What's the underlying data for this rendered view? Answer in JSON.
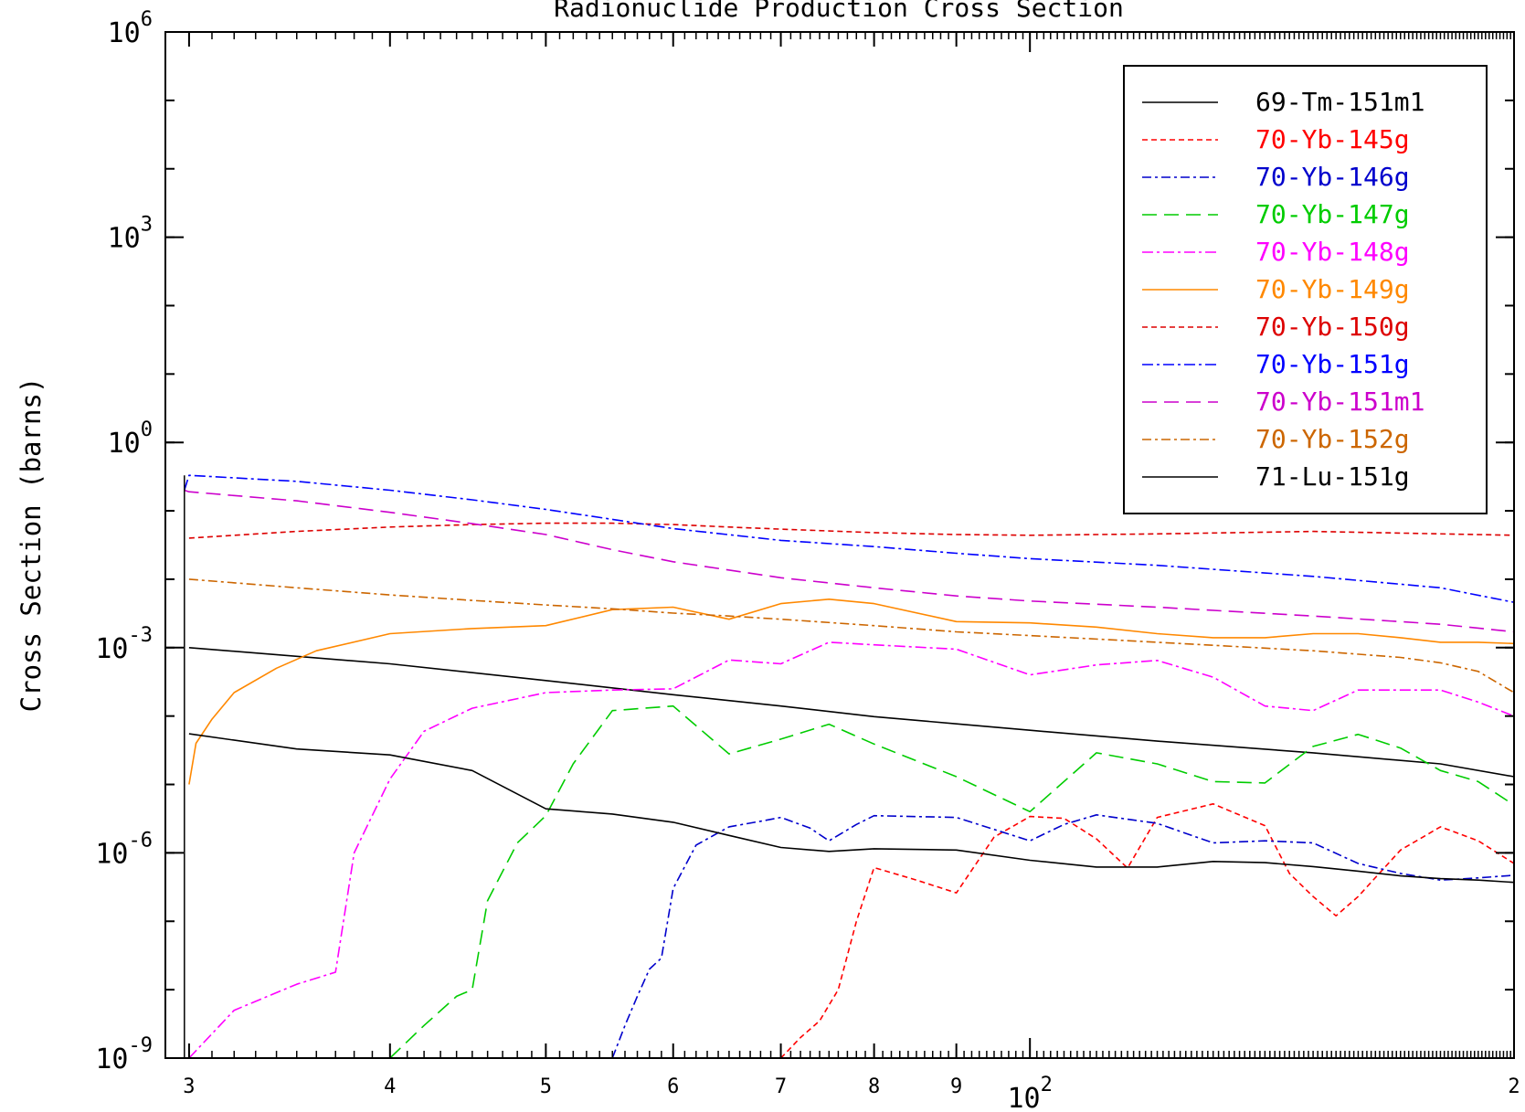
{
  "chart_data": {
    "type": "line",
    "title": "Radionuclide Production Cross Section",
    "xlabel": "",
    "ylabel": "Cross Section (barns)",
    "x_scale": "log",
    "y_scale": "log",
    "xlim": [
      29,
      200
    ],
    "ylim": [
      1e-09,
      1000000.0
    ],
    "y_ticks": [
      {
        "value": 1000000.0,
        "base": "10",
        "exp": "6"
      },
      {
        "value": 1000.0,
        "base": "10",
        "exp": "3"
      },
      {
        "value": 1,
        "base": "10",
        "exp": "0"
      },
      {
        "value": 0.001,
        "base": "10",
        "exp": "-3"
      },
      {
        "value": 1e-06,
        "base": "10",
        "exp": "-6"
      },
      {
        "value": 1e-09,
        "base": "10",
        "exp": "-9"
      }
    ],
    "x_ticks": [
      {
        "value": 30,
        "label": "3"
      },
      {
        "value": 40,
        "label": "4"
      },
      {
        "value": 50,
        "label": "5"
      },
      {
        "value": 60,
        "label": "6"
      },
      {
        "value": 70,
        "label": "7"
      },
      {
        "value": 80,
        "label": "8"
      },
      {
        "value": 90,
        "label": "9"
      },
      {
        "value": 200,
        "label": "2"
      }
    ],
    "x_decade_label": {
      "value": 100,
      "base": "10",
      "exp": "2"
    },
    "grid": false,
    "legend_position": "top-right",
    "series": [
      {
        "name": "69-Tm-151m1",
        "color": "#000000",
        "dash": "solid",
        "x": [
          30,
          40,
          50,
          60,
          70,
          80,
          90,
          100,
          120,
          150,
          180,
          200
        ],
        "y": [
          0.001,
          0.00058,
          0.00033,
          0.000205,
          0.00014,
          9.8e-05,
          7.7e-05,
          6.2e-05,
          4.3e-05,
          2.9e-05,
          2e-05,
          1.3e-05
        ]
      },
      {
        "name": "70-Yb-145g",
        "color": "#ff0000",
        "dash": "6,4",
        "x": [
          70,
          72,
          74,
          76,
          78,
          80,
          85,
          90,
          95,
          100,
          105,
          110,
          115,
          120,
          130,
          140,
          145,
          150,
          155,
          160,
          170,
          180,
          190,
          200
        ],
        "y": [
          1e-09,
          2e-09,
          3.5e-09,
          1e-08,
          1e-07,
          6.1e-07,
          4e-07,
          2.6e-07,
          1.7e-06,
          3.4e-06,
          3.2e-06,
          1.6e-06,
          6e-07,
          3.3e-06,
          5.2e-06,
          2.5e-06,
          5e-07,
          2.3e-07,
          1.2e-07,
          2.3e-07,
          1.1e-06,
          2.4e-06,
          1.5e-06,
          7e-07
        ]
      },
      {
        "name": "70-Yb-146g",
        "color": "#0000cc",
        "dash": "10,4,3,4",
        "x": [
          55,
          56,
          57,
          58,
          59,
          60,
          62,
          65,
          68,
          70,
          73,
          75,
          78,
          80,
          90,
          100,
          105,
          110,
          120,
          130,
          140,
          150,
          160,
          170,
          180,
          190,
          200
        ],
        "y": [
          1e-09,
          3e-09,
          8e-09,
          2e-08,
          2.9e-08,
          3e-07,
          1.3e-06,
          2.4e-06,
          2.9e-06,
          3.3e-06,
          2.3e-06,
          1.5e-06,
          2.6e-06,
          3.5e-06,
          3.3e-06,
          1.5e-06,
          2.6e-06,
          3.6e-06,
          2.7e-06,
          1.4e-06,
          1.5e-06,
          1.4e-06,
          7e-07,
          5e-07,
          4e-07,
          4.3e-07,
          4.7e-07
        ]
      },
      {
        "name": "70-Yb-147g",
        "color": "#00cc00",
        "dash": "16,8",
        "x": [
          40,
          42,
          44,
          45,
          46,
          48,
          50,
          52,
          55,
          60,
          65,
          70,
          75,
          80,
          90,
          100,
          110,
          120,
          130,
          140,
          150,
          160,
          170,
          180,
          190,
          200
        ],
        "y": [
          1e-09,
          3e-09,
          8e-09,
          1e-08,
          2e-07,
          1.4e-06,
          3.5e-06,
          2e-05,
          0.00012,
          0.00014,
          2.8e-05,
          4.6e-05,
          7.6e-05,
          3.9e-05,
          1.3e-05,
          4e-06,
          2.9e-05,
          2e-05,
          1.1e-05,
          1.05e-05,
          3.6e-05,
          5.4e-05,
          3.4e-05,
          1.6e-05,
          1.1e-05,
          5e-06
        ]
      },
      {
        "name": "70-Yb-148g",
        "color": "#ff00ff",
        "dash": "12,4,3,4",
        "x": [
          30,
          32,
          35,
          37,
          38,
          40,
          42,
          45,
          50,
          55,
          60,
          65,
          70,
          75,
          80,
          90,
          100,
          110,
          120,
          130,
          140,
          150,
          160,
          170,
          180,
          190,
          200
        ],
        "y": [
          1e-09,
          5e-09,
          1.2e-08,
          1.8e-08,
          1e-06,
          1.2e-05,
          6e-05,
          0.00013,
          0.00022,
          0.00024,
          0.00025,
          0.00066,
          0.00058,
          0.0012,
          0.0011,
          0.00095,
          0.0004,
          0.00056,
          0.00065,
          0.00037,
          0.00014,
          0.00012,
          0.00024,
          0.00024,
          0.00024,
          0.00016,
          0.0001
        ]
      },
      {
        "name": "70-Yb-149g",
        "color": "#ff8800",
        "dash": "solid",
        "x": [
          30,
          30.3,
          31,
          32,
          34,
          36,
          40,
          45,
          50,
          55,
          60,
          65,
          70,
          75,
          80,
          90,
          100,
          110,
          120,
          130,
          140,
          150,
          160,
          170,
          180,
          190,
          200
        ],
        "y": [
          1e-05,
          4e-05,
          9e-05,
          0.00022,
          0.0005,
          0.0009,
          0.0016,
          0.0019,
          0.0021,
          0.0036,
          0.0039,
          0.0026,
          0.0044,
          0.0051,
          0.0044,
          0.0024,
          0.0023,
          0.002,
          0.0016,
          0.0014,
          0.0014,
          0.0016,
          0.0016,
          0.0014,
          0.0012,
          0.0012,
          0.00115
        ]
      },
      {
        "name": "70-Yb-150g",
        "color": "#dd0000",
        "dash": "6,4",
        "x": [
          30,
          35,
          40,
          45,
          50,
          55,
          60,
          65,
          70,
          80,
          90,
          100,
          120,
          150,
          200
        ],
        "y": [
          0.04,
          0.05,
          0.058,
          0.063,
          0.066,
          0.066,
          0.063,
          0.058,
          0.054,
          0.048,
          0.045,
          0.044,
          0.046,
          0.05,
          0.044
        ]
      },
      {
        "name": "70-Yb-151g",
        "color": "#0000ff",
        "dash": "12,4,3,4",
        "x": [
          29.8,
          30,
          35,
          40,
          45,
          50,
          55,
          60,
          70,
          80,
          90,
          100,
          120,
          150,
          180,
          200
        ],
        "y": [
          0.2,
          0.33,
          0.27,
          0.2,
          0.145,
          0.105,
          0.075,
          0.055,
          0.037,
          0.03,
          0.024,
          0.02,
          0.016,
          0.011,
          0.0075,
          0.0046
        ]
      },
      {
        "name": "70-Yb-151m1",
        "color": "#cc00cc",
        "dash": "16,8",
        "x": [
          29.8,
          30,
          35,
          40,
          45,
          50,
          55,
          60,
          70,
          80,
          90,
          100,
          120,
          150,
          180,
          200
        ],
        "y": [
          0.2,
          0.19,
          0.14,
          0.095,
          0.065,
          0.045,
          0.027,
          0.018,
          0.0105,
          0.0075,
          0.0057,
          0.0048,
          0.0039,
          0.0029,
          0.0022,
          0.0017
        ]
      },
      {
        "name": "70-Yb-152g",
        "color": "#cc6600",
        "dash": "10,4,3,4",
        "x": [
          30,
          35,
          40,
          45,
          50,
          55,
          60,
          65,
          70,
          80,
          90,
          100,
          120,
          150,
          170,
          180,
          190,
          200
        ],
        "y": [
          0.01,
          0.0075,
          0.0059,
          0.0049,
          0.0042,
          0.0037,
          0.0032,
          0.0029,
          0.0026,
          0.0021,
          0.0017,
          0.0015,
          0.0012,
          0.0009,
          0.00072,
          0.0006,
          0.00045,
          0.00022
        ]
      },
      {
        "name": "71-Lu-151g",
        "color": "#000000",
        "dash": "solid",
        "x": [
          30,
          35,
          40,
          45,
          50,
          55,
          60,
          65,
          70,
          75,
          80,
          90,
          100,
          110,
          120,
          130,
          140,
          150,
          160,
          170,
          180,
          190,
          200
        ],
        "y": [
          5.5e-05,
          3.3e-05,
          2.7e-05,
          1.6e-05,
          4.4e-06,
          3.7e-06,
          2.8e-06,
          1.8e-06,
          1.2e-06,
          1.05e-06,
          1.15e-06,
          1.1e-06,
          7.8e-07,
          6.2e-07,
          6.2e-07,
          7.5e-07,
          7.2e-07,
          6.3e-07,
          5.4e-07,
          4.6e-07,
          4.2e-07,
          4e-07,
          3.7e-07
        ]
      }
    ]
  }
}
